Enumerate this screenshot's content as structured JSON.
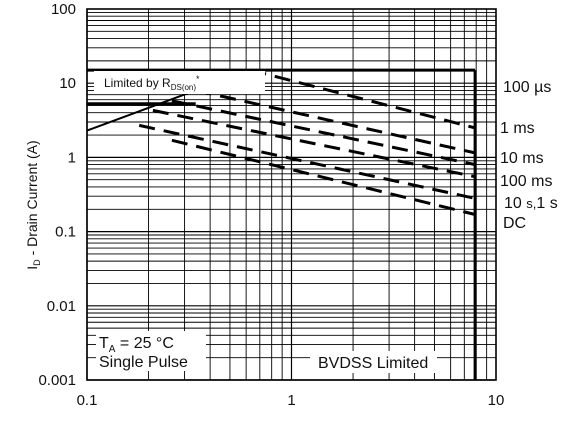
{
  "chart_data": {
    "type": "line",
    "title": "",
    "xlabel": "",
    "ylabel": "I_D - Drain Current (A)",
    "ylabel_parts": {
      "main": "I",
      "sub": "D",
      "rest": " - Drain Current (A)"
    },
    "x_scale": "log",
    "y_scale": "log",
    "xlim": [
      0.1,
      10
    ],
    "ylim": [
      0.001,
      100
    ],
    "grid": true,
    "x_ticks": [
      {
        "value": 0.1,
        "label": "0.1"
      },
      {
        "value": 1,
        "label": "1"
      },
      {
        "value": 10,
        "label": "10"
      }
    ],
    "y_ticks": [
      {
        "value": 100,
        "label": "100"
      },
      {
        "value": 10,
        "label": "10"
      },
      {
        "value": 1,
        "label": "1"
      },
      {
        "value": 0.1,
        "label": "0.1"
      },
      {
        "value": 0.01,
        "label": "0.01"
      },
      {
        "value": 0.001,
        "label": "0.001"
      }
    ],
    "series": [
      {
        "name": "100 µs",
        "points": [
          [
            0.63,
            15
          ],
          [
            0.63,
            15
          ],
          [
            7.9,
            2.5
          ]
        ]
      },
      {
        "name": "1 ms",
        "points": [
          [
            0.34,
            8
          ],
          [
            7.9,
            1.15
          ]
        ]
      },
      {
        "name": "10 ms",
        "points": [
          [
            0.26,
            5.8
          ],
          [
            7.9,
            0.8
          ]
        ]
      },
      {
        "name": "100 ms",
        "points": [
          [
            0.21,
            4.3
          ],
          [
            7.9,
            0.55
          ]
        ]
      },
      {
        "name": "10 s, 1 s",
        "points": [
          [
            0.18,
            2.7
          ],
          [
            7.9,
            0.28
          ]
        ]
      },
      {
        "name": "DC",
        "points": [
          [
            0.26,
            1.7
          ],
          [
            7.9,
            0.17
          ]
        ]
      }
    ],
    "boundaries": {
      "rds_on_limit": [
        [
          0.1,
          2.3
        ],
        [
          0.63,
          15
        ]
      ],
      "current_limit": [
        [
          0.1,
          15
        ],
        [
          7.9,
          15
        ]
      ],
      "current_limit_inner": [
        [
          0.1,
          5.3
        ],
        [
          0.34,
          5.3
        ]
      ],
      "bvdss_limit": [
        [
          7.9,
          15
        ],
        [
          7.9,
          0.001
        ]
      ]
    },
    "annotations": {
      "rds_label": {
        "main": "Limited by R",
        "sub": "DS(on)",
        "sup": "*"
      },
      "ta_main": "T",
      "ta_sub": "A",
      "ta_rest": " = 25 °C",
      "single_pulse": "Single Pulse",
      "bvdss": "BVDSS Limited"
    },
    "series_labels": {
      "us100": "100 µs",
      "ms1": "1 ms",
      "ms10": "10 ms",
      "ms100": "100 ms",
      "s10_part1": "10",
      "s10_part2": "s,",
      "s10_part3": "1 s",
      "dc": "DC"
    }
  }
}
